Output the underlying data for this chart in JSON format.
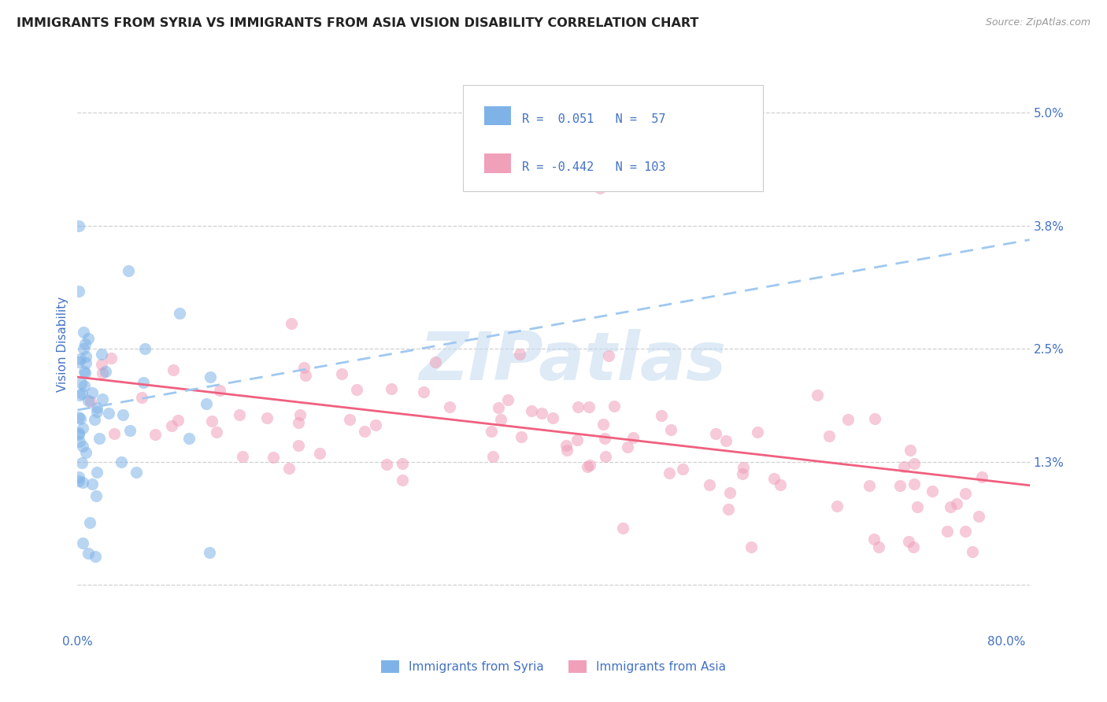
{
  "title": "IMMIGRANTS FROM SYRIA VS IMMIGRANTS FROM ASIA VISION DISABILITY CORRELATION CHART",
  "source": "Source: ZipAtlas.com",
  "ylabel": "Vision Disability",
  "y_ticks": [
    0.0,
    0.013,
    0.025,
    0.038,
    0.05
  ],
  "y_tick_labels": [
    "",
    "1.3%",
    "2.5%",
    "3.8%",
    "5.0%"
  ],
  "x_tick_vals": [
    0.0,
    0.8
  ],
  "x_tick_labels": [
    "0.0%",
    "80.0%"
  ],
  "xlim": [
    0.0,
    0.82
  ],
  "ylim": [
    -0.005,
    0.056
  ],
  "syria_color": "#7fb3e8",
  "asia_color": "#f0a0b8",
  "syria_line_color": "#a0c8f0",
  "asia_line_color": "#f06080",
  "legend_R_syria": " 0.051",
  "legend_N_syria": " 57",
  "legend_R_asia": "-0.442",
  "legend_N_asia": "103",
  "legend_label_syria": "Immigrants from Syria",
  "legend_label_asia": "Immigrants from Asia",
  "watermark": "ZIPatlas",
  "background_color": "#ffffff",
  "grid_color": "#d0d0d0",
  "title_color": "#222222",
  "tick_label_color": "#4472c4",
  "blue_text_color": "#4472c4",
  "syria_line_intercept": 0.0185,
  "syria_line_slope": 0.022,
  "asia_line_intercept": 0.022,
  "asia_line_slope": -0.014,
  "dot_size": 120,
  "dot_alpha": 0.55
}
